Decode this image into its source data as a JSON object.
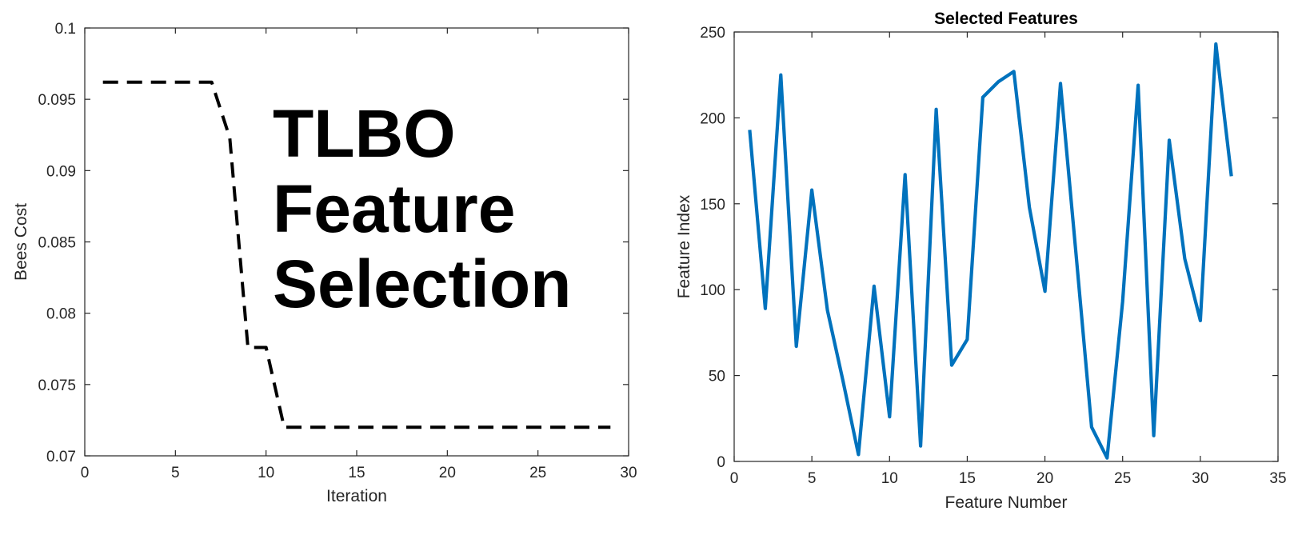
{
  "chart_data": [
    {
      "type": "line",
      "title": "",
      "xlabel": "Iteration",
      "ylabel": "Bees Cost",
      "xlim": [
        0,
        30
      ],
      "ylim": [
        0.07,
        0.1
      ],
      "xticks": [
        0,
        5,
        10,
        15,
        20,
        25,
        30
      ],
      "yticks": [
        0.07,
        0.075,
        0.08,
        0.085,
        0.09,
        0.095,
        0.1
      ],
      "grid": false,
      "line_style": "dashed",
      "line_color": "#000000",
      "annotation": [
        "TLBO",
        "Feature",
        "Selection"
      ],
      "x": [
        1,
        2,
        3,
        4,
        5,
        6,
        7,
        8,
        9,
        10,
        11,
        12,
        13,
        14,
        15,
        16,
        17,
        18,
        19,
        20,
        21,
        22,
        23,
        24,
        25,
        26,
        27,
        28,
        29
      ],
      "values": [
        0.0962,
        0.0962,
        0.0962,
        0.0962,
        0.0962,
        0.0962,
        0.0962,
        0.0923,
        0.0776,
        0.0776,
        0.072,
        0.072,
        0.072,
        0.072,
        0.072,
        0.072,
        0.072,
        0.072,
        0.072,
        0.072,
        0.072,
        0.072,
        0.072,
        0.072,
        0.072,
        0.072,
        0.072,
        0.072,
        0.072
      ]
    },
    {
      "type": "line",
      "title": "Selected Features",
      "xlabel": "Feature Number",
      "ylabel": "Feature Index",
      "xlim": [
        0,
        35
      ],
      "ylim": [
        0,
        250
      ],
      "xticks": [
        0,
        5,
        10,
        15,
        20,
        25,
        30,
        35
      ],
      "yticks": [
        0,
        50,
        100,
        150,
        200,
        250
      ],
      "grid": false,
      "line_style": "solid",
      "line_color": "#0072BD",
      "x": [
        1,
        2,
        3,
        4,
        5,
        6,
        7,
        8,
        9,
        10,
        11,
        12,
        13,
        14,
        15,
        16,
        17,
        18,
        19,
        20,
        21,
        22,
        23,
        24,
        25,
        26,
        27,
        28,
        29,
        30,
        31,
        32
      ],
      "values": [
        193,
        89,
        225,
        67,
        158,
        88,
        47,
        4,
        102,
        26,
        167,
        9,
        205,
        56,
        71,
        212,
        221,
        227,
        148,
        99,
        220,
        121,
        20,
        2,
        93,
        219,
        15,
        187,
        118,
        82,
        243,
        166
      ]
    }
  ]
}
